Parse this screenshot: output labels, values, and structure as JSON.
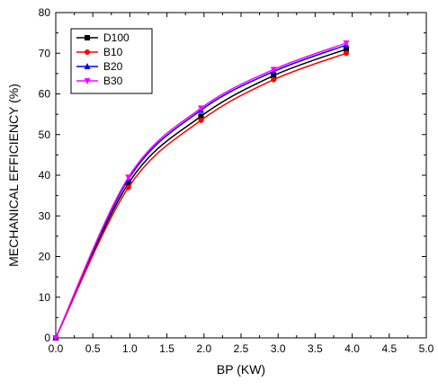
{
  "chart_data": {
    "type": "line",
    "xlabel": "BP (KW)",
    "ylabel": "MECHANICAL EFFICIENCY (%)",
    "xlim": [
      0,
      5
    ],
    "ylim": [
      0,
      80
    ],
    "xticks": [
      "0.0",
      "0.5",
      "1.0",
      "1.5",
      "2.0",
      "2.5",
      "3.0",
      "3.5",
      "4.0",
      "4.5",
      "5.0"
    ],
    "yticks": [
      "0",
      "10",
      "20",
      "30",
      "40",
      "50",
      "60",
      "70",
      "80"
    ],
    "grid": false,
    "legend_position": "top-left",
    "series": [
      {
        "name": "D100",
        "color": "#000000",
        "marker": "square",
        "x": [
          0,
          0.98,
          1.96,
          2.94,
          3.92
        ],
        "y": [
          0,
          38,
          54.5,
          64.5,
          71
        ]
      },
      {
        "name": "B10",
        "color": "#ff0000",
        "marker": "circle",
        "x": [
          0,
          0.98,
          1.96,
          2.94,
          3.92
        ],
        "y": [
          0,
          37,
          53.5,
          63.5,
          70
        ]
      },
      {
        "name": "B20",
        "color": "#0000ff",
        "marker": "triangle-up",
        "x": [
          0,
          0.98,
          1.96,
          2.94,
          3.92
        ],
        "y": [
          0,
          39,
          56,
          65.5,
          72
        ]
      },
      {
        "name": "B30",
        "color": "#ff00ff",
        "marker": "triangle-down",
        "x": [
          0,
          0.98,
          1.96,
          2.94,
          3.92
        ],
        "y": [
          0,
          39.5,
          56.5,
          66,
          72.5
        ]
      }
    ]
  }
}
